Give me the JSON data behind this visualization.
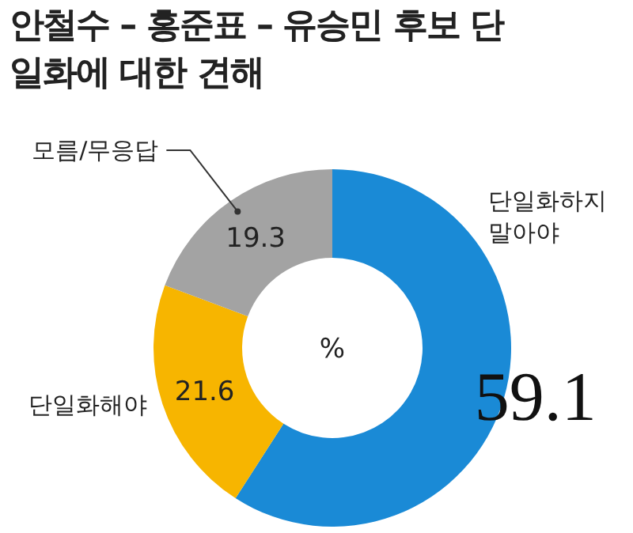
{
  "chart_data": {
    "type": "donut",
    "title": "안철수 – 홍준표 – 유승민 후보 단일화에 대한 견해",
    "categories": [
      "단일화하지 말아야",
      "단일화해야",
      "모름/무응답"
    ],
    "values": [
      59.1,
      21.6,
      19.3
    ],
    "colors": [
      "#1a8ad6",
      "#f7b500",
      "#a3a3a3"
    ],
    "data_labels": true,
    "annotations": [
      "%"
    ]
  }
}
